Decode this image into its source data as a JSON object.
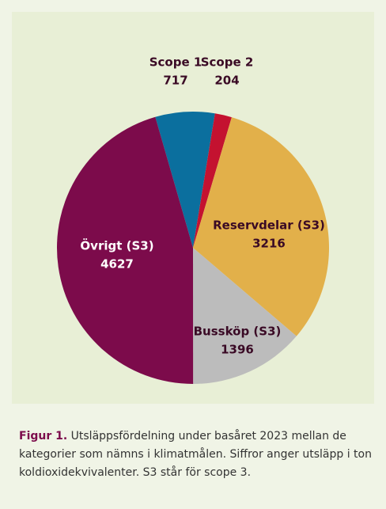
{
  "chart_data": {
    "type": "pie",
    "categories": [
      "Scope 1",
      "Scope 2",
      "Reservdelar (S3)",
      "Bussköp (S3)",
      "Övrigt (S3)"
    ],
    "values": [
      717,
      204,
      3216,
      1396,
      4627
    ],
    "colors": [
      "#0b6f9e",
      "#c41230",
      "#e2b04a",
      "#bcbcbc",
      "#7c0b4b"
    ],
    "caption_label": "Figur 1.",
    "caption": "Utsläppsfördelning under basåret 2023 mellan de kategorier som nämns i klimatmålen. Siffror anger utsläpp i ton koldioxidekvivalenter. S3 står för scope 3."
  }
}
